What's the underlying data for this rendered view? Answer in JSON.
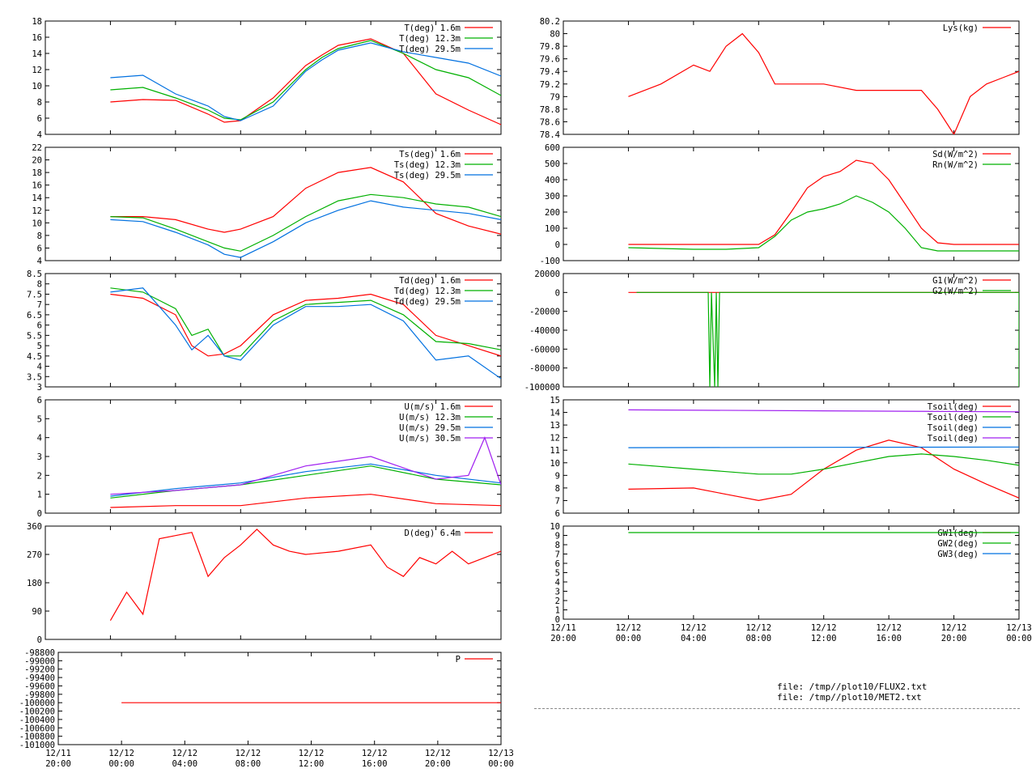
{
  "files": [
    "file: /tmp//plot10/FLUX2.txt",
    "file: /tmp//plot10/MET2.txt"
  ],
  "left_xticks": [
    {
      "top": "12/11",
      "bot": "20:00"
    },
    {
      "top": "12/12",
      "bot": "00:00"
    },
    {
      "top": "12/12",
      "bot": "04:00"
    },
    {
      "top": "12/12",
      "bot": "08:00"
    },
    {
      "top": "12/12",
      "bot": "12:00"
    },
    {
      "top": "12/12",
      "bot": "16:00"
    },
    {
      "top": "12/12",
      "bot": "20:00"
    },
    {
      "top": "12/13",
      "bot": "00:00"
    }
  ],
  "right_xticks": [
    {
      "top": "12/11",
      "bot": "20:00"
    },
    {
      "top": "12/12",
      "bot": "00:00"
    },
    {
      "top": "12/12",
      "bot": "04:00"
    },
    {
      "top": "12/12",
      "bot": "08:00"
    },
    {
      "top": "12/12",
      "bot": "12:00"
    },
    {
      "top": "12/12",
      "bot": "16:00"
    },
    {
      "top": "12/12",
      "bot": "20:00"
    },
    {
      "top": "12/13",
      "bot": "00:00"
    }
  ],
  "chart_data": [
    {
      "id": "air-temp",
      "type": "line",
      "xlim_hours": [
        20,
        48
      ],
      "ylim": [
        4,
        18
      ],
      "yticks": [
        "4",
        "6",
        "8",
        "10",
        "12",
        "14",
        "16",
        "18"
      ],
      "series": [
        {
          "name": "T(deg)  1.6m",
          "color": "#ff0000",
          "x": [
            24,
            26,
            28,
            30,
            31,
            32,
            34,
            36,
            37,
            38,
            40,
            42,
            44,
            46,
            48
          ],
          "y": [
            8,
            8.3,
            8.2,
            6.5,
            5.5,
            5.7,
            8.5,
            12.5,
            13.8,
            15,
            15.8,
            14,
            9,
            7,
            5.2
          ]
        },
        {
          "name": "T(deg) 12.3m",
          "color": "#00b000",
          "x": [
            24,
            26,
            28,
            30,
            31,
            32,
            34,
            36,
            37,
            38,
            40,
            42,
            44,
            46,
            48
          ],
          "y": [
            9.5,
            9.8,
            8.5,
            7,
            6,
            5.8,
            8,
            12,
            13.5,
            14.6,
            15.6,
            14,
            12,
            11,
            8.8
          ]
        },
        {
          "name": "T(deg) 29.5m",
          "color": "#0070e0",
          "x": [
            24,
            26,
            28,
            30,
            31,
            32,
            34,
            36,
            37,
            38,
            40,
            42,
            44,
            46,
            48
          ],
          "y": [
            11,
            11.3,
            9,
            7.5,
            6.2,
            5.7,
            7.5,
            11.8,
            13.2,
            14.4,
            15.3,
            14.2,
            13.5,
            12.8,
            11.2
          ]
        }
      ]
    },
    {
      "id": "lys",
      "type": "line",
      "xlim_hours": [
        20,
        48
      ],
      "ylim": [
        78.4,
        80.2
      ],
      "yticks": [
        "78.4",
        "78.6",
        "78.8",
        "79",
        "79.2",
        "79.4",
        "79.6",
        "79.8",
        "80",
        "80.2"
      ],
      "series": [
        {
          "name": "Lys(kg)",
          "color": "#ff0000",
          "x": [
            24,
            25,
            26,
            28,
            29,
            30,
            31,
            32,
            33,
            34,
            36,
            38,
            40,
            42,
            43,
            44,
            45,
            46,
            47,
            48
          ],
          "y": [
            79,
            79.1,
            79.2,
            79.5,
            79.4,
            79.8,
            80,
            79.7,
            79.2,
            79.2,
            79.2,
            79.1,
            79.1,
            79.1,
            78.8,
            78.4,
            79,
            79.2,
            79.3,
            79.4
          ]
        }
      ]
    },
    {
      "id": "soil-surface-temp",
      "type": "line",
      "xlim_hours": [
        20,
        48
      ],
      "ylim": [
        4,
        22
      ],
      "yticks": [
        "4",
        "6",
        "8",
        "10",
        "12",
        "14",
        "16",
        "18",
        "20",
        "22"
      ],
      "series": [
        {
          "name": "Ts(deg)  1.6m",
          "color": "#ff0000",
          "x": [
            24,
            26,
            28,
            30,
            31,
            32,
            34,
            36,
            38,
            40,
            42,
            44,
            46,
            48
          ],
          "y": [
            11,
            11,
            10.5,
            9,
            8.5,
            9,
            11,
            15.5,
            18,
            18.8,
            16.5,
            11.5,
            9.5,
            8.2
          ]
        },
        {
          "name": "Ts(deg) 12.3m",
          "color": "#00b000",
          "x": [
            24,
            26,
            28,
            30,
            31,
            32,
            34,
            36,
            38,
            40,
            42,
            44,
            46,
            48
          ],
          "y": [
            11,
            10.8,
            9,
            7,
            6,
            5.5,
            8,
            11,
            13.5,
            14.5,
            14,
            13,
            12.5,
            11
          ]
        },
        {
          "name": "Ts(deg) 29.5m",
          "color": "#0070e0",
          "x": [
            24,
            26,
            28,
            30,
            31,
            32,
            34,
            36,
            38,
            40,
            42,
            44,
            46,
            48
          ],
          "y": [
            10.5,
            10.2,
            8.5,
            6.5,
            5,
            4.5,
            7,
            10,
            12,
            13.5,
            12.5,
            12,
            11.5,
            10.5
          ]
        }
      ]
    },
    {
      "id": "radiation",
      "type": "line",
      "xlim_hours": [
        20,
        48
      ],
      "ylim": [
        -100,
        600
      ],
      "yticks": [
        "-100",
        "0",
        "100",
        "200",
        "300",
        "400",
        "500",
        "600"
      ],
      "series": [
        {
          "name": "Sd(W/m^2)",
          "color": "#ff0000",
          "x": [
            24,
            30,
            32,
            33,
            34,
            35,
            36,
            37,
            38,
            39,
            40,
            41,
            42,
            43,
            44,
            48
          ],
          "y": [
            0,
            0,
            0,
            60,
            200,
            350,
            420,
            450,
            520,
            500,
            400,
            250,
            100,
            10,
            0,
            0
          ]
        },
        {
          "name": "Rn(W/m^2)",
          "color": "#00b000",
          "x": [
            24,
            28,
            30,
            32,
            33,
            34,
            35,
            36,
            37,
            38,
            39,
            40,
            41,
            42,
            43,
            44,
            48
          ],
          "y": [
            -20,
            -30,
            -30,
            -20,
            50,
            150,
            200,
            220,
            250,
            300,
            260,
            200,
            100,
            -20,
            -40,
            -40,
            -40
          ]
        }
      ]
    },
    {
      "id": "dew-temp",
      "type": "line",
      "xlim_hours": [
        20,
        48
      ],
      "ylim": [
        3,
        8.5
      ],
      "yticks": [
        "3",
        "3.5",
        "4",
        "4.5",
        "5",
        "5.5",
        "6",
        "6.5",
        "7",
        "7.5",
        "8",
        "8.5"
      ],
      "series": [
        {
          "name": "Td(deg)  1.6m",
          "color": "#ff0000",
          "x": [
            24,
            26,
            28,
            29,
            30,
            31,
            32,
            34,
            36,
            38,
            40,
            42,
            44,
            46,
            48
          ],
          "y": [
            7.5,
            7.3,
            6.5,
            5,
            4.5,
            4.6,
            5,
            6.5,
            7.2,
            7.3,
            7.5,
            7,
            5.5,
            5,
            4.5
          ]
        },
        {
          "name": "Td(deg) 12.3m",
          "color": "#00b000",
          "x": [
            24,
            26,
            28,
            29,
            30,
            31,
            32,
            34,
            36,
            38,
            40,
            42,
            44,
            46,
            48
          ],
          "y": [
            7.8,
            7.6,
            6.8,
            5.5,
            5.8,
            4.5,
            4.5,
            6.2,
            7,
            7.1,
            7.2,
            6.5,
            5.2,
            5.1,
            4.8
          ]
        },
        {
          "name": "Td(deg) 29.5m",
          "color": "#0070e0",
          "x": [
            24,
            26,
            28,
            29,
            30,
            31,
            32,
            34,
            36,
            38,
            40,
            42,
            44,
            46,
            48
          ],
          "y": [
            7.6,
            7.8,
            6,
            4.8,
            5.5,
            4.5,
            4.3,
            6,
            6.9,
            6.9,
            7,
            6.2,
            4.3,
            4.5,
            3.4
          ]
        }
      ]
    },
    {
      "id": "ground-heat",
      "type": "line",
      "xlim_hours": [
        20,
        48
      ],
      "ylim": [
        -100000,
        20000
      ],
      "yticks": [
        "-100000",
        "-80000",
        "-60000",
        "-40000",
        "-20000",
        "0",
        "20000"
      ],
      "series": [
        {
          "name": "G1(W/m^2)",
          "color": "#ff0000",
          "x": [
            24,
            48
          ],
          "y": [
            0,
            0
          ]
        },
        {
          "name": "G2(W/m^2)",
          "color": "#00b000",
          "x": [
            24.5,
            28,
            28.9,
            29.0,
            29.1,
            29.3,
            29.4,
            29.5,
            29.6,
            48,
            48
          ],
          "y": [
            0,
            0,
            0,
            -100000,
            0,
            -100000,
            0,
            -100000,
            0,
            0,
            -100000
          ]
        }
      ]
    },
    {
      "id": "wind-speed",
      "type": "line",
      "xlim_hours": [
        20,
        48
      ],
      "ylim": [
        0,
        6
      ],
      "yticks": [
        "0",
        "1",
        "2",
        "3",
        "4",
        "5",
        "6"
      ],
      "series": [
        {
          "name": "U(m/s)  1.6m",
          "color": "#ff0000",
          "x": [
            24,
            28,
            32,
            36,
            40,
            44,
            48
          ],
          "y": [
            0.3,
            0.4,
            0.4,
            0.8,
            1,
            0.5,
            0.4
          ]
        },
        {
          "name": "U(m/s) 12.3m",
          "color": "#00b000",
          "x": [
            24,
            28,
            32,
            36,
            40,
            44,
            48
          ],
          "y": [
            0.8,
            1.2,
            1.5,
            2,
            2.5,
            1.8,
            1.5
          ]
        },
        {
          "name": "U(m/s) 29.5m",
          "color": "#0070e0",
          "x": [
            24,
            28,
            32,
            36,
            40,
            44,
            48
          ],
          "y": [
            0.9,
            1.3,
            1.6,
            2.2,
            2.6,
            2,
            1.6
          ]
        },
        {
          "name": "U(m/s) 30.5m",
          "color": "#a020f0",
          "x": [
            24,
            28,
            32,
            36,
            40,
            44,
            46,
            47,
            48
          ],
          "y": [
            1,
            1.2,
            1.5,
            2.5,
            3,
            1.8,
            2,
            4,
            1.5
          ]
        }
      ]
    },
    {
      "id": "soil-temp",
      "type": "line",
      "xlim_hours": [
        20,
        48
      ],
      "ylim": [
        6,
        15
      ],
      "yticks": [
        "6",
        "7",
        "8",
        "9",
        "10",
        "11",
        "12",
        "13",
        "14",
        "15"
      ],
      "series": [
        {
          "name": "Tsoil(deg)",
          "color": "#ff0000",
          "x": [
            24,
            28,
            30,
            32,
            34,
            36,
            38,
            40,
            42,
            44,
            46,
            48
          ],
          "y": [
            7.9,
            8,
            7.5,
            7,
            7.5,
            9.5,
            11,
            11.8,
            11.2,
            9.5,
            8.3,
            7.2
          ]
        },
        {
          "name": "Tsoil(deg)",
          "color": "#00b000",
          "x": [
            24,
            28,
            32,
            34,
            36,
            38,
            40,
            42,
            44,
            46,
            48
          ],
          "y": [
            9.9,
            9.5,
            9.1,
            9.1,
            9.5,
            10,
            10.5,
            10.7,
            10.5,
            10.2,
            9.8
          ]
        },
        {
          "name": "Tsoil(deg)",
          "color": "#0070e0",
          "x": [
            24,
            48
          ],
          "y": [
            11.2,
            11.25
          ]
        },
        {
          "name": "Tsoil(deg)",
          "color": "#a020f0",
          "x": [
            24,
            48
          ],
          "y": [
            14.2,
            14.05
          ]
        }
      ]
    },
    {
      "id": "wind-dir",
      "type": "line",
      "xlim_hours": [
        20,
        48
      ],
      "ylim": [
        0,
        360
      ],
      "yticks": [
        "0",
        "90",
        "180",
        "270",
        "360"
      ],
      "series": [
        {
          "name": "D(deg)   6.4m",
          "color": "#ff0000",
          "x": [
            24,
            25,
            26,
            27,
            28,
            29,
            30,
            31,
            32,
            33,
            34,
            35,
            36,
            38,
            40,
            41,
            42,
            43,
            44,
            45,
            46,
            47,
            48
          ],
          "y": [
            60,
            150,
            80,
            320,
            330,
            340,
            200,
            260,
            300,
            350,
            300,
            280,
            270,
            280,
            300,
            230,
            200,
            260,
            240,
            280,
            240,
            260,
            280
          ]
        }
      ]
    },
    {
      "id": "groundwater",
      "type": "line",
      "xlim_hours": [
        20,
        48
      ],
      "ylim": [
        0,
        10
      ],
      "yticks": [
        "0",
        "1",
        "2",
        "3",
        "4",
        "5",
        "6",
        "7",
        "8",
        "9",
        "10"
      ],
      "series": [
        {
          "name": "GW1(deg)",
          "color": "#ff0000",
          "x": [],
          "y": []
        },
        {
          "name": "GW2(deg)",
          "color": "#00b000",
          "x": [
            24,
            48
          ],
          "y": [
            9.3,
            9.3
          ]
        },
        {
          "name": "GW3(deg)",
          "color": "#0070e0",
          "x": [],
          "y": []
        }
      ]
    },
    {
      "id": "pressure",
      "type": "line",
      "xlim_hours": [
        20,
        48
      ],
      "ylim": [
        -101000,
        -98800
      ],
      "yticks": [
        "-101000",
        "-100800",
        "-100600",
        "-100400",
        "-100200",
        "-100000",
        "-99800",
        "-99600",
        "-99400",
        "-99200",
        "-99000",
        "-98800"
      ],
      "series": [
        {
          "name": "P",
          "color": "#ff0000",
          "x": [
            24,
            48
          ],
          "y": [
            -100000,
            -100000
          ]
        }
      ]
    }
  ]
}
